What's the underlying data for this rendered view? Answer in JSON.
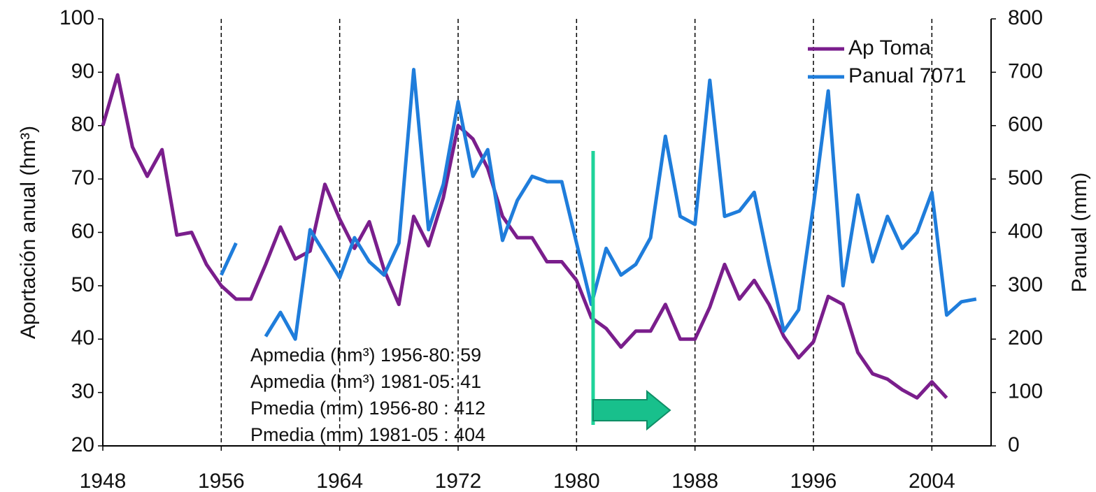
{
  "chart_data": {
    "type": "line",
    "y_label": "Aportación anual (hm³)",
    "y2_label": "Panual (mm)",
    "x": [
      1948,
      1949,
      1950,
      1951,
      1952,
      1953,
      1954,
      1955,
      1956,
      1957,
      1958,
      1959,
      1960,
      1961,
      1962,
      1963,
      1964,
      1965,
      1966,
      1967,
      1968,
      1969,
      1970,
      1971,
      1972,
      1973,
      1974,
      1975,
      1976,
      1977,
      1978,
      1979,
      1980,
      1981,
      1982,
      1983,
      1984,
      1985,
      1986,
      1987,
      1988,
      1989,
      1990,
      1991,
      1992,
      1993,
      1994,
      1995,
      1996,
      1997,
      1998,
      1999,
      2000,
      2001,
      2002,
      2003,
      2004,
      2005,
      2006,
      2007
    ],
    "series": [
      {
        "name": "Ap Toma",
        "color": "#7a1e8c",
        "axis": "y",
        "values": [
          80,
          89.5,
          76,
          70.5,
          75.5,
          59.5,
          60,
          54,
          50,
          47.5,
          47.5,
          54,
          61,
          55,
          56.5,
          69,
          62.5,
          57,
          62,
          53,
          46.5,
          63,
          57.5,
          66.5,
          80,
          77.5,
          72,
          63,
          59,
          59,
          54.5,
          54.5,
          51,
          44,
          42,
          38.5,
          41.5,
          41.5,
          46.5,
          40,
          40,
          46,
          54,
          47.5,
          51,
          46.5,
          40.5,
          36.5,
          39.5,
          48,
          46.5,
          37.5,
          33.5,
          32.5,
          30.5,
          29,
          32,
          29,
          null,
          null
        ]
      },
      {
        "name": "Panual 7071",
        "color": "#1f7ddb",
        "axis": "y2",
        "values": [
          null,
          null,
          null,
          null,
          null,
          null,
          null,
          null,
          320,
          380,
          null,
          205,
          250,
          200,
          405,
          360,
          315,
          390,
          345,
          320,
          380,
          705,
          405,
          490,
          645,
          505,
          555,
          385,
          460,
          505,
          495,
          495,
          380,
          265,
          370,
          320,
          340,
          390,
          580,
          430,
          415,
          685,
          430,
          440,
          475,
          340,
          215,
          255,
          450,
          665,
          300,
          470,
          345,
          430,
          370,
          400,
          475,
          245,
          270,
          275
        ]
      }
    ],
    "xlim": [
      1948,
      2008
    ],
    "xticks": [
      1948,
      1956,
      1964,
      1972,
      1980,
      1988,
      1996,
      2004
    ],
    "ylim": [
      20,
      100
    ],
    "yticks": [
      20,
      30,
      40,
      50,
      60,
      70,
      80,
      90,
      100
    ],
    "y2lim": [
      0,
      800
    ],
    "y2ticks": [
      0,
      100,
      200,
      300,
      400,
      500,
      600,
      700,
      800
    ],
    "xgrid": true,
    "legend": "top-right",
    "annotations": [
      "Apmedia (hm³) 1956-80: 59",
      "Apmedia (hm³) 1981-05: 41",
      "Pmedia (mm) 1956-80  : 412",
      "Pmedia (mm) 1981-05  : 404"
    ]
  }
}
